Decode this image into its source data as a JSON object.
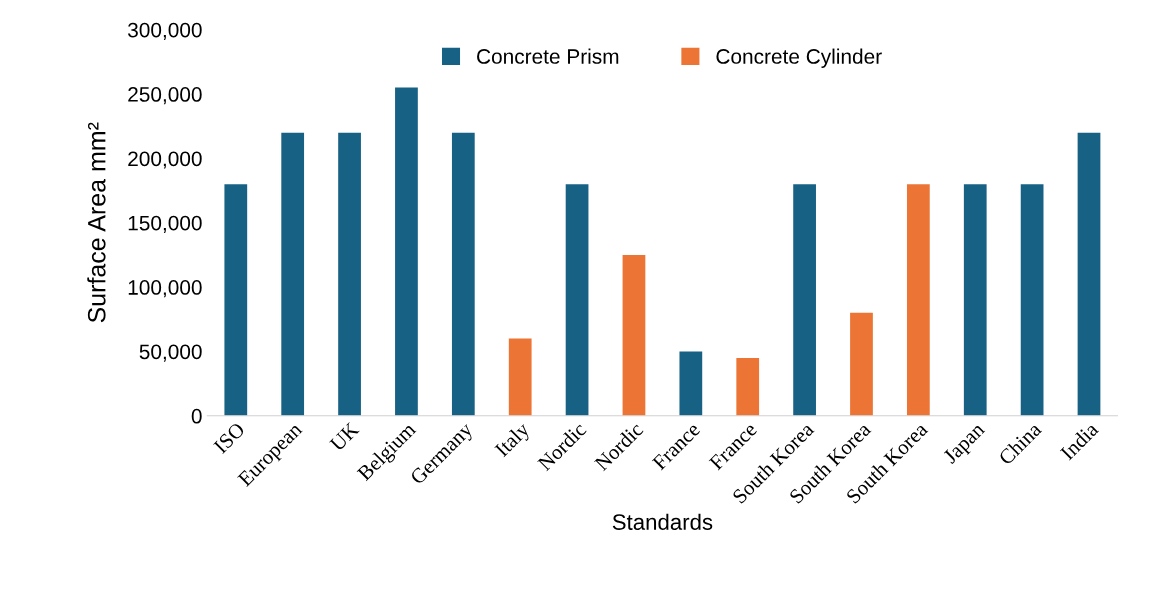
{
  "chart_data": {
    "type": "bar",
    "xlabel": "Standards",
    "ylabel": "Surface Area mm²",
    "categories": [
      "ISO",
      "European",
      "UK",
      "Belgium",
      "Germany",
      "Italy",
      "Nordic",
      "Nordic",
      "France",
      "France",
      "South Korea",
      "South Korea",
      "South Korea",
      "Japan",
      "China",
      "India"
    ],
    "series": [
      {
        "name": "Concrete Prism",
        "color": "#176185",
        "values": [
          180000,
          220000,
          220000,
          255000,
          220000,
          null,
          180000,
          null,
          50000,
          null,
          180000,
          null,
          null,
          180000,
          180000,
          220000
        ]
      },
      {
        "name": "Concrete Cylinder",
        "color": "#ec7434",
        "values": [
          null,
          null,
          null,
          null,
          null,
          60000,
          null,
          125000,
          null,
          45000,
          null,
          80000,
          180000,
          null,
          null,
          null
        ]
      }
    ],
    "ylim": [
      0,
      300000
    ],
    "yticks": [
      {
        "value": 0,
        "label": "0"
      },
      {
        "value": 50000,
        "label": "50,000"
      },
      {
        "value": 100000,
        "label": "100,000"
      },
      {
        "value": 150000,
        "label": "150,000"
      },
      {
        "value": 200000,
        "label": "200,000"
      },
      {
        "value": 250000,
        "label": "250,000"
      },
      {
        "value": 300000,
        "label": "300,000"
      }
    ],
    "grid": false,
    "legend": "top"
  }
}
